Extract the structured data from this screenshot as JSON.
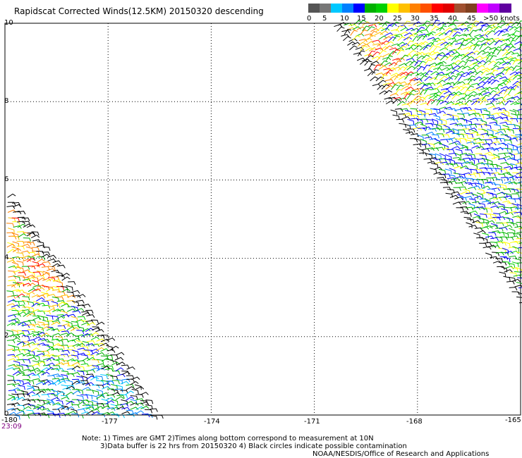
{
  "title": "Rapidscat Corrected Winds(12.5KM) 20150320 descending",
  "colorbar": {
    "swatches": [
      "#555555",
      "#777777",
      "#00c8ff",
      "#0080ff",
      "#0000ff",
      "#00b000",
      "#00d000",
      "#ffff00",
      "#ffc000",
      "#ff8000",
      "#ff5000",
      "#ff0000",
      "#e00000",
      "#a05030",
      "#804020",
      "#ff00ff",
      "#c000ff",
      "#6000a0"
    ],
    "labels": [
      "0",
      "5",
      "10",
      "15",
      "20",
      "25",
      "30",
      "35",
      "40",
      "45",
      ">50 knots"
    ]
  },
  "y_ticks": [
    "10",
    "8",
    "6",
    "4",
    "2",
    "0"
  ],
  "x_ticks": [
    "-180",
    "-177",
    "-174",
    "-171",
    "-168",
    "-165"
  ],
  "time_label": "23:09",
  "notes": [
    "Note: 1) Times are GMT 2)Times along bottom correspond to measurement at 10N",
    "3)Data buffer is 22 hrs from 20150320 4) Black circles indicate possible contamination",
    "NOAA/NESDIS/Office of Research and Applications"
  ],
  "chart_data": {
    "type": "wind-barb map",
    "title": "Rapidscat Corrected Winds(12.5KM) 20150320 descending",
    "xlim": [
      -180,
      -165
    ],
    "ylim": [
      0,
      10
    ],
    "x_ticks": [
      -180,
      -177,
      -174,
      -171,
      -168,
      -165
    ],
    "y_ticks": [
      0,
      2,
      4,
      6,
      8,
      10
    ],
    "grid": true,
    "colorbar_unit": "knots",
    "speed_bins": [
      0,
      5,
      10,
      15,
      20,
      25,
      30,
      35,
      40,
      45,
      50
    ],
    "swaths": [
      {
        "region": "northeast",
        "edge_from": [
          -170.4,
          10
        ],
        "edge_to": [
          -165.2,
          2.8
        ],
        "dominant_speeds_knots": "15-25 north, 10-20 south",
        "contaminated_edge": true
      },
      {
        "region": "southwest",
        "edge_from": [
          -180,
          5.8
        ],
        "edge_to": [
          -175.5,
          0
        ],
        "dominant_speeds_knots": "20-30 north, 15-25 south",
        "contaminated_edge": true
      }
    ]
  }
}
